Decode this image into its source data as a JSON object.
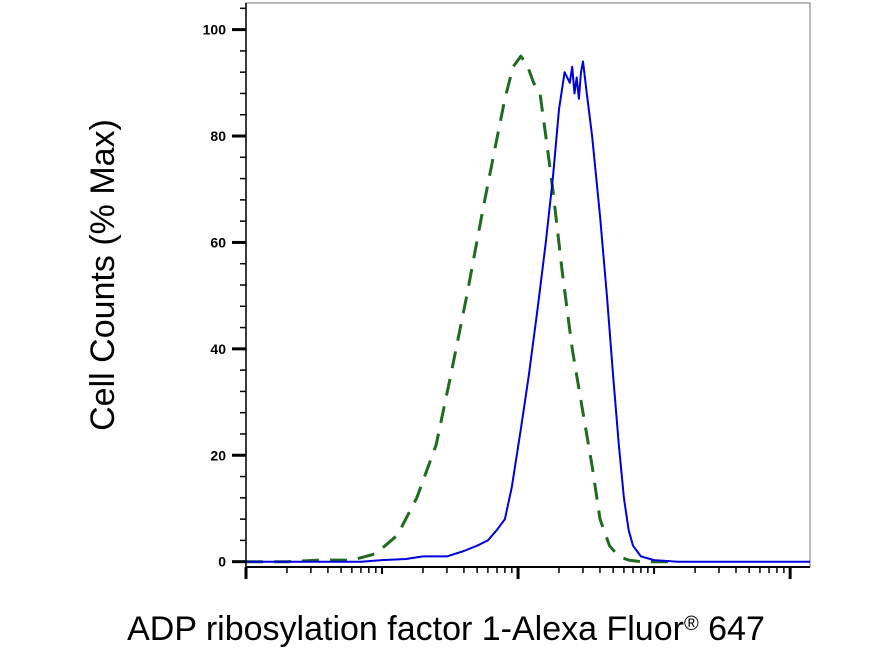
{
  "chart_data": {
    "type": "line",
    "xlabel": "ADP ribosylation factor 1-Alexa Fluor® 647",
    "xlabel_main": "ADP ribosylation factor 1-Alexa Fluor",
    "xlabel_mark": "®",
    "xlabel_tail": " 647",
    "ylabel": "Cell Counts (% Max)",
    "xscale": "log",
    "xlim": [
      0.0001,
      1.4
    ],
    "ylim": [
      -1,
      105
    ],
    "y_ticks": [
      0,
      20,
      40,
      60,
      80,
      100
    ],
    "y_tick_labels": [
      "0",
      "20",
      "40",
      "60",
      "80",
      "100"
    ],
    "x_major_ticks": [
      0.0001,
      0.01,
      1
    ],
    "grid": false,
    "legend": "none",
    "series": [
      {
        "style": "dashed",
        "color": "#1f6b1f",
        "x": [
          0.0001,
          0.0002,
          0.00035,
          0.0006,
          0.0009,
          0.0013,
          0.0018,
          0.0025,
          0.0032,
          0.0042,
          0.0055,
          0.0068,
          0.008,
          0.0092,
          0.0105,
          0.0118,
          0.013,
          0.0145,
          0.016,
          0.018,
          0.021,
          0.025,
          0.03,
          0.035,
          0.04,
          0.047,
          0.055,
          0.065,
          0.08,
          0.1,
          0.13
        ],
        "y": [
          0,
          0,
          0.3,
          0.3,
          1.5,
          5,
          12,
          22,
          35,
          50,
          66,
          78,
          87,
          93,
          95,
          93,
          90,
          88,
          80,
          70,
          55,
          40,
          28,
          18,
          8,
          3,
          1,
          0.3,
          0,
          0,
          0
        ]
      },
      {
        "style": "solid",
        "color": "#0000dd",
        "x": [
          0.0001,
          0.0002,
          0.0004,
          0.0007,
          0.001,
          0.0015,
          0.002,
          0.003,
          0.004,
          0.005,
          0.006,
          0.007,
          0.008,
          0.009,
          0.0105,
          0.012,
          0.014,
          0.016,
          0.018,
          0.02,
          0.022,
          0.024,
          0.025,
          0.026,
          0.027,
          0.028,
          0.029,
          0.03,
          0.032,
          0.035,
          0.04,
          0.045,
          0.05,
          0.055,
          0.06,
          0.065,
          0.07,
          0.08,
          0.1,
          0.15,
          0.3,
          0.6,
          1.4
        ],
        "y": [
          0,
          0,
          0,
          0,
          0.3,
          0.5,
          1,
          1,
          2,
          3,
          4,
          6,
          8,
          14,
          25,
          35,
          48,
          60,
          72,
          85,
          92,
          90,
          93,
          88,
          91,
          87,
          92,
          94,
          88,
          80,
          65,
          50,
          35,
          22,
          12,
          6,
          3,
          1,
          0.3,
          0,
          0,
          0,
          0
        ]
      }
    ]
  }
}
